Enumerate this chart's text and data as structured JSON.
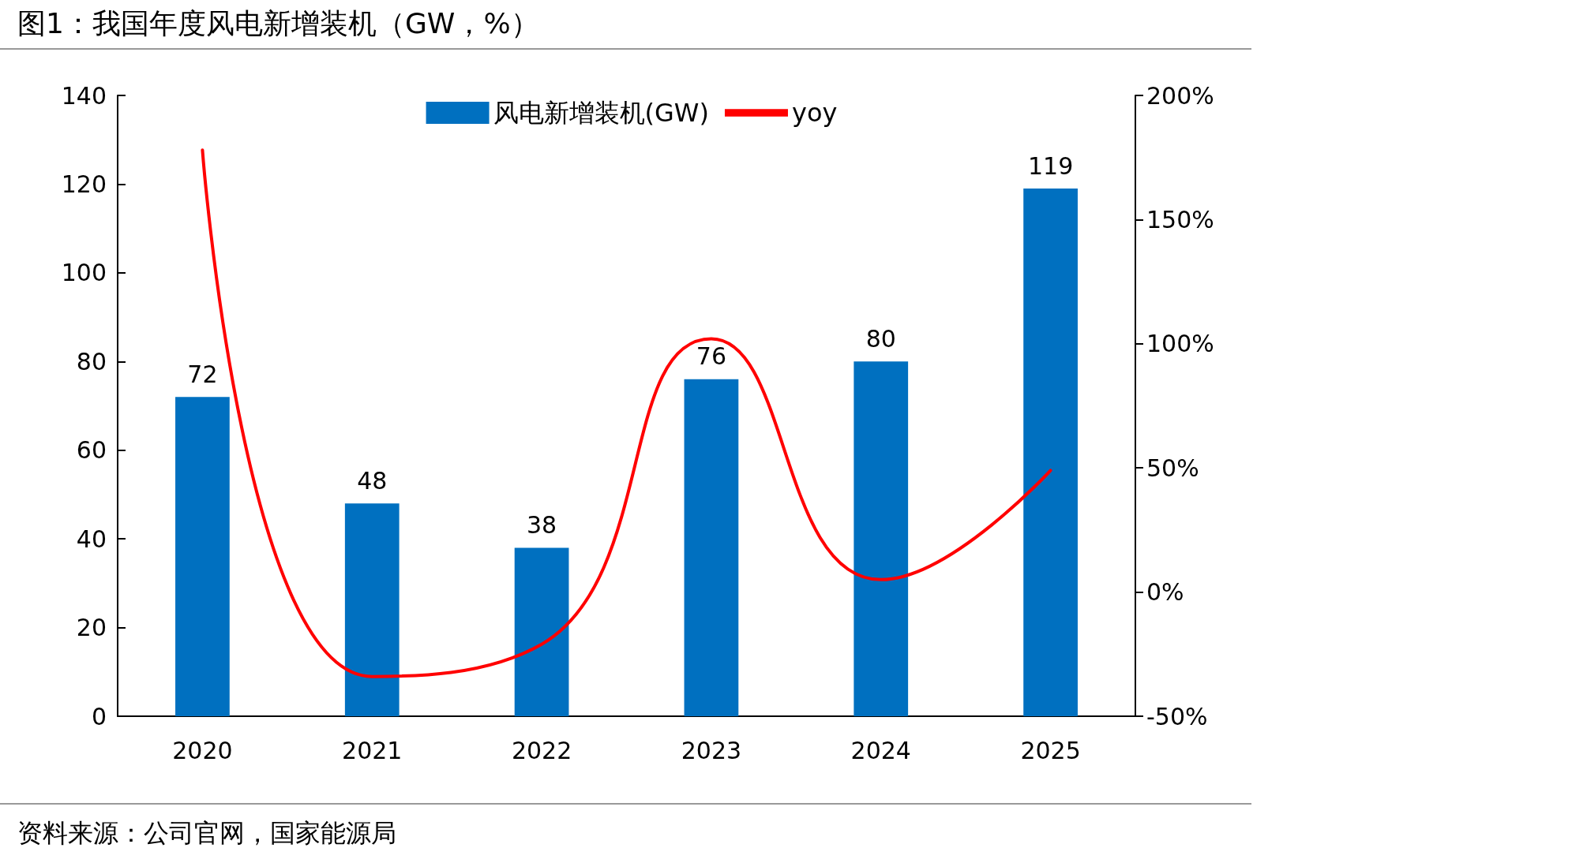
{
  "chart_data": {
    "type": "bar",
    "title": "图1：我国年度风电新增装机（GW，%）",
    "categories": [
      "2020",
      "2021",
      "2022",
      "2023",
      "2024",
      "2025"
    ],
    "series": [
      {
        "name": "风电新增装机(GW)",
        "color": "#0070c0",
        "values": [
          72,
          48,
          38,
          76,
          80,
          119
        ],
        "data_labels": true
      },
      {
        "name": "yoy",
        "type": "line",
        "axis": "y2",
        "color": "#ff0000",
        "values": [
          178,
          -34,
          -21,
          102,
          5,
          49
        ],
        "marker": "none",
        "line_style": "solid"
      }
    ],
    "ylim": [
      0,
      140
    ],
    "yticks": [
      0,
      20,
      40,
      60,
      80,
      100,
      120,
      140
    ],
    "y2lim": [
      -50,
      200
    ],
    "y2ticks": [
      {
        "value": -50,
        "label": "-50%"
      },
      {
        "value": 0,
        "label": "0%"
      },
      {
        "value": 50,
        "label": "50%"
      },
      {
        "value": 100,
        "label": "100%"
      },
      {
        "value": 150,
        "label": "150%"
      },
      {
        "value": 200,
        "label": "200%"
      }
    ],
    "grid": false,
    "legend": "top",
    "annotations": [
      "资料来源：公司官网，国家能源局"
    ]
  }
}
